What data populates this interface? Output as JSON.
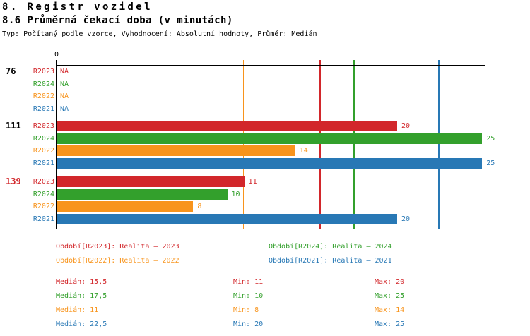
{
  "header": {
    "title": "8. Registr vozidel",
    "subtitle": "8.6 Průměrná čekací doba (v minutách)",
    "meta": "Typ: Počítaný podle vzorce, Vyhodnocení: Absolutní hodnoty, Průměr: Medián"
  },
  "chart_data": {
    "type": "bar",
    "orientation": "horizontal",
    "title": "8.6 Průměrná čekací doba (v minutách)",
    "unit": "minuty",
    "xlim": [
      0,
      25.2
    ],
    "x_zero_label": "0",
    "na_text": "NA",
    "grid": "per-series median lines",
    "legend_position": "bottom",
    "series": [
      {
        "id": "R2023",
        "label": "R2023",
        "legend": "Období[R2023]: Realita – 2023",
        "color": "#d2272b",
        "median": 15.5,
        "min": 11,
        "max": 20
      },
      {
        "id": "R2024",
        "label": "R2024",
        "legend": "Období[R2024]: Realita – 2024",
        "color": "#33a02c",
        "median": 17.5,
        "min": 10,
        "max": 25
      },
      {
        "id": "R2022",
        "label": "R2022",
        "legend": "Období[R2022]: Realita – 2022",
        "color": "#f8941c",
        "median": 11,
        "min": 8,
        "max": 14
      },
      {
        "id": "R2021",
        "label": "R2021",
        "legend": "Období[R2021]: Realita – 2021",
        "color": "#2878b5",
        "median": 22.5,
        "min": 20,
        "max": 25
      }
    ],
    "groups": [
      {
        "label": "76",
        "label_color": "#000000",
        "values": [
          null,
          null,
          null,
          null
        ]
      },
      {
        "label": "111",
        "label_color": "#000000",
        "values": [
          20,
          25,
          14,
          25
        ]
      },
      {
        "label": "139",
        "label_color": "#d2272b",
        "values": [
          11,
          10,
          8,
          20
        ]
      }
    ]
  },
  "stats": {
    "median_prefix": "Medián: ",
    "min_prefix": "Min: ",
    "max_prefix": "Max: ",
    "rows": [
      {
        "median": "15,5",
        "min": "11",
        "max": "20"
      },
      {
        "median": "17,5",
        "min": "10",
        "max": "25"
      },
      {
        "median": "11",
        "min": "8",
        "max": "14"
      },
      {
        "median": "22,5",
        "min": "20",
        "max": "25"
      }
    ]
  }
}
